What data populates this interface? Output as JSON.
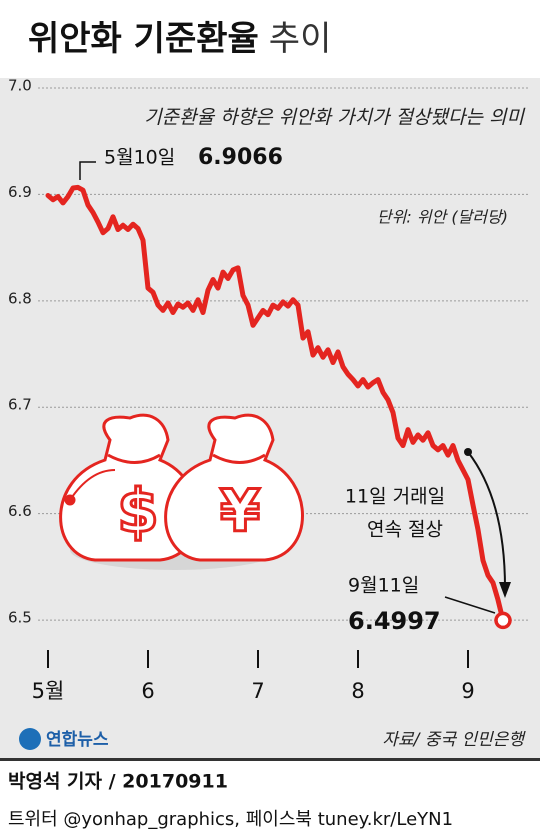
{
  "chart_data": {
    "type": "line",
    "title": [
      "위안화 기준환율",
      "추이"
    ],
    "subtitle": "기준환율 하향은 위안화 가치가 절상됐다는 의미",
    "unit": "단위: 위안 (달러당)",
    "peak_label": "5월10일",
    "end_label": "9월11일",
    "annotation": [
      "11일 거래일",
      "연속 절상"
    ],
    "source": "자료/ 중국 인민은행",
    "logo": "연합뉴스",
    "byline": "박영석 기자 / 20170911",
    "social": "트위터 @yonhap_graphics, 페이스북 tuney.kr/LeYN1",
    "categories": [
      "5월",
      null,
      null,
      null,
      null,
      null,
      null,
      null,
      null,
      null,
      null,
      null,
      null,
      null,
      null,
      null,
      null,
      null,
      null,
      null,
      "6",
      null,
      null,
      null,
      null,
      null,
      null,
      null,
      null,
      null,
      null,
      null,
      null,
      null,
      null,
      null,
      null,
      null,
      null,
      null,
      null,
      null,
      "7",
      null,
      null,
      null,
      null,
      null,
      null,
      null,
      null,
      null,
      null,
      null,
      null,
      null,
      null,
      null,
      null,
      null,
      null,
      null,
      "8",
      null,
      null,
      null,
      null,
      null,
      null,
      null,
      null,
      null,
      null,
      null,
      null,
      null,
      null,
      null,
      null,
      null,
      null,
      null,
      null,
      null,
      "9",
      null,
      null,
      null,
      null,
      null,
      null,
      null
    ],
    "series": [
      {
        "color": "#e42520",
        "values": [
          6.899,
          6.895,
          6.898,
          6.892,
          6.898,
          6.906,
          6.9066,
          6.904,
          6.89,
          6.883,
          6.874,
          6.864,
          6.868,
          6.879,
          6.867,
          6.871,
          6.867,
          6.872,
          6.868,
          6.857,
          6.812,
          6.808,
          6.796,
          6.791,
          6.798,
          6.789,
          6.797,
          6.794,
          6.798,
          6.791,
          6.801,
          6.789,
          6.81,
          6.82,
          6.812,
          6.827,
          6.821,
          6.829,
          6.831,
          6.805,
          6.796,
          6.777,
          6.784,
          6.791,
          6.787,
          6.796,
          6.793,
          6.799,
          6.795,
          6.801,
          6.796,
          6.765,
          6.771,
          6.749,
          6.756,
          6.747,
          6.754,
          6.742,
          6.752,
          6.738,
          6.731,
          6.726,
          6.72,
          6.726,
          6.719,
          6.723,
          6.726,
          6.714,
          6.707,
          6.695,
          6.671,
          6.664,
          6.679,
          6.667,
          6.674,
          6.669,
          6.676,
          6.664,
          6.66,
          6.664,
          6.655,
          6.664,
          6.65,
          6.641,
          6.632,
          6.608,
          6.585,
          6.556,
          6.542,
          6.535,
          6.519,
          6.4997
        ]
      }
    ],
    "ylim": [
      6.47,
      7.0
    ],
    "yticks": [
      6.5,
      6.6,
      6.7,
      6.8,
      6.9,
      {
        "value": 7,
        "label": "7.0"
      }
    ],
    "grid": true
  }
}
